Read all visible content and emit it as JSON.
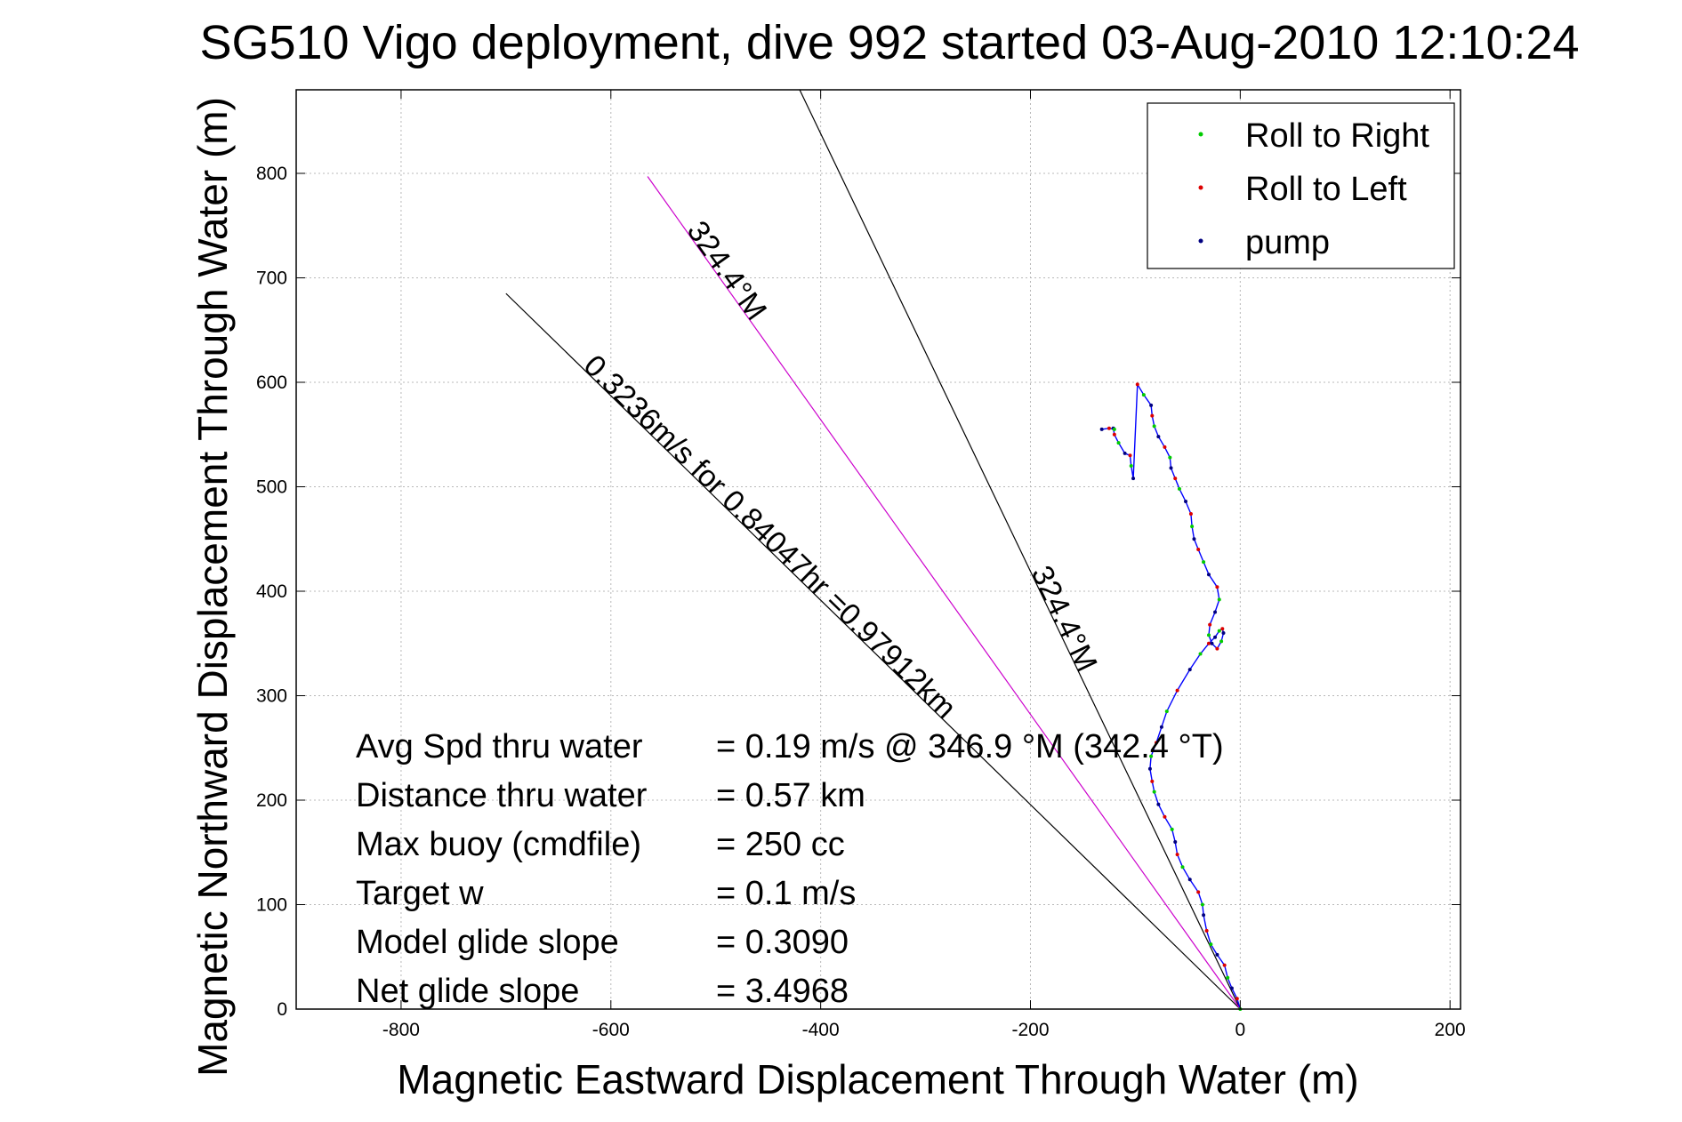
{
  "chart_data": {
    "type": "line",
    "title": "SG510 Vigo deployment, dive 992 started 03-Aug-2010 12:10:24",
    "xlabel": "Magnetic Eastward Displacement Through Water (m)",
    "ylabel": "Magnetic Northward Displacement Through Water (m)",
    "xlim": [
      -900,
      210
    ],
    "ylim": [
      0,
      880
    ],
    "xticks": [
      -800,
      -600,
      -400,
      -200,
      0,
      200
    ],
    "yticks": [
      0,
      100,
      200,
      300,
      400,
      500,
      600,
      700,
      800
    ],
    "xtick_labels": [
      "-800",
      "-600",
      "-400",
      "-200",
      "0",
      "200"
    ],
    "ytick_labels": [
      "0",
      "100",
      "200",
      "300",
      "400",
      "500",
      "600",
      "700",
      "800"
    ],
    "grid": true,
    "legend_position": "top-right",
    "legend": [
      {
        "label": "Roll to Right",
        "color": "#00cc00"
      },
      {
        "label": "Roll to Left",
        "color": "#dd0000"
      },
      {
        "label": "pump",
        "color": "#000080"
      }
    ],
    "reference_lines": [
      {
        "label": "324.4°M",
        "color": "#000000",
        "points": [
          [
            0,
            0
          ],
          [
            -420,
            880
          ]
        ]
      },
      {
        "label": "0.3236m/s for 0.84047hr =0.97912km",
        "color": "#000000",
        "points": [
          [
            0,
            0
          ],
          [
            -700,
            685
          ]
        ]
      },
      {
        "label": "324.4°M",
        "color": "#cc00cc",
        "points": [
          [
            0,
            0
          ],
          [
            -565,
            797
          ]
        ]
      }
    ],
    "annotations": [
      "324.4°M",
      "0.3236m/s for 0.84047hr =0.97912km",
      "324.4°M"
    ],
    "series": [
      {
        "color": "#0000ff",
        "x": [
          0,
          -3,
          -8,
          -12,
          -15,
          -22,
          -28,
          -32,
          -35,
          -36,
          -40,
          -48,
          -55,
          -60,
          -62,
          -65,
          -72,
          -78,
          -82,
          -84,
          -86,
          -85,
          -80,
          -75,
          -70,
          -60,
          -48,
          -38,
          -30,
          -24,
          -20,
          -17,
          -16,
          -18,
          -22,
          -27,
          -30,
          -29,
          -24,
          -20,
          -22,
          -30,
          -35,
          -40,
          -44,
          -46,
          -47,
          -52,
          -58,
          -62,
          -66,
          -67,
          -72,
          -78,
          -82,
          -84,
          -85,
          -92,
          -98,
          -102,
          -104,
          -105,
          -110,
          -116,
          -120,
          -121,
          -120,
          -125,
          -132
        ],
        "y": [
          0,
          10,
          20,
          30,
          42,
          52,
          62,
          75,
          90,
          100,
          112,
          124,
          136,
          148,
          160,
          172,
          184,
          196,
          208,
          218,
          230,
          242,
          255,
          270,
          285,
          305,
          325,
          340,
          350,
          356,
          362,
          364,
          360,
          352,
          345,
          350,
          358,
          368,
          380,
          392,
          404,
          416,
          428,
          440,
          450,
          462,
          474,
          486,
          498,
          508,
          518,
          528,
          538,
          548,
          558,
          568,
          578,
          588,
          598,
          508,
          520,
          530,
          532,
          542,
          550,
          556,
          555,
          556,
          555
        ]
      }
    ],
    "stats": [
      {
        "label": "Avg Spd thru water",
        "value": "=  0.19 m/s @ 346.9 °M (342.4 °T)"
      },
      {
        "label": "Distance thru water",
        "value": "=  0.57 km"
      },
      {
        "label": "Max buoy (cmdfile)",
        "value": "= 250 cc"
      },
      {
        "label": "Target w",
        "value": "= 0.1 m/s"
      },
      {
        "label": "Model glide slope",
        "value": "= 0.3090"
      },
      {
        "label": "Net glide slope",
        "value": "= 3.4968"
      }
    ]
  }
}
